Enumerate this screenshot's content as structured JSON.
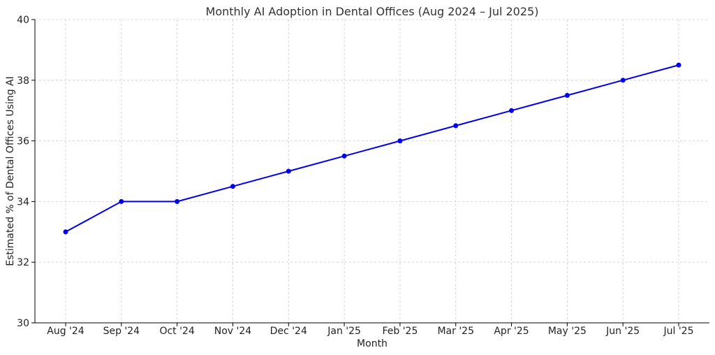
{
  "chart_data": {
    "type": "line",
    "title": "Monthly AI Adoption in Dental Offices (Aug 2024 – Jul 2025)",
    "xlabel": "Month",
    "ylabel": "Estimated % of Dental Offices Using AI",
    "categories": [
      "Aug '24",
      "Sep '24",
      "Oct '24",
      "Nov '24",
      "Dec '24",
      "Jan '25",
      "Feb '25",
      "Mar '25",
      "Apr '25",
      "May '25",
      "Jun '25",
      "Jul '25"
    ],
    "series": [
      {
        "values": [
          33,
          34,
          34,
          34.5,
          35,
          35.5,
          36,
          36.5,
          37,
          37.5,
          38,
          38.5
        ]
      }
    ],
    "ylim": [
      30,
      40
    ],
    "yticks": [
      30,
      32,
      34,
      36,
      38,
      40
    ],
    "grid": true,
    "line_color": "#0000ee"
  }
}
